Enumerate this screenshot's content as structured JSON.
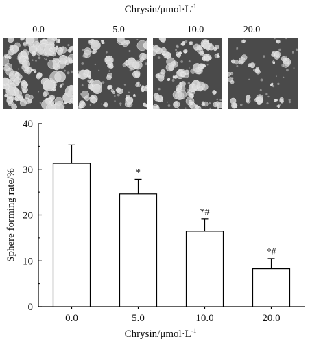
{
  "header": {
    "title": "Chrysin/μmol·L",
    "title_sup": "-1",
    "concentrations": [
      "0.0",
      "5.0",
      "10.0",
      "20.0"
    ]
  },
  "panels": [
    {
      "label": "0.0",
      "cell_color": "#d8d8d8"
    },
    {
      "label": "5.0",
      "cell_color": "#d8d8d8"
    },
    {
      "label": "10.0",
      "cell_color": "#d8d8d8"
    },
    {
      "label": "20.0",
      "cell_color": "#d8d8d8"
    }
  ],
  "chart_data": {
    "type": "bar",
    "categories": [
      "0.0",
      "5.0",
      "10.0",
      "20.0"
    ],
    "values": [
      31.3,
      24.6,
      16.5,
      8.3
    ],
    "errors": [
      4.0,
      3.2,
      2.7,
      2.2
    ],
    "annotations": [
      "",
      "*",
      "*#",
      "*#"
    ],
    "xlabel": "Chrysin/μmol·L",
    "xlabel_sup": "-1",
    "ylabel": "Sphere forming rate/%",
    "ylim": [
      0,
      40
    ],
    "yticks": [
      "0",
      "10",
      "20",
      "30",
      "40"
    ],
    "grid": false,
    "bar_fill": "#ffffff",
    "bar_stroke": "#000000"
  }
}
